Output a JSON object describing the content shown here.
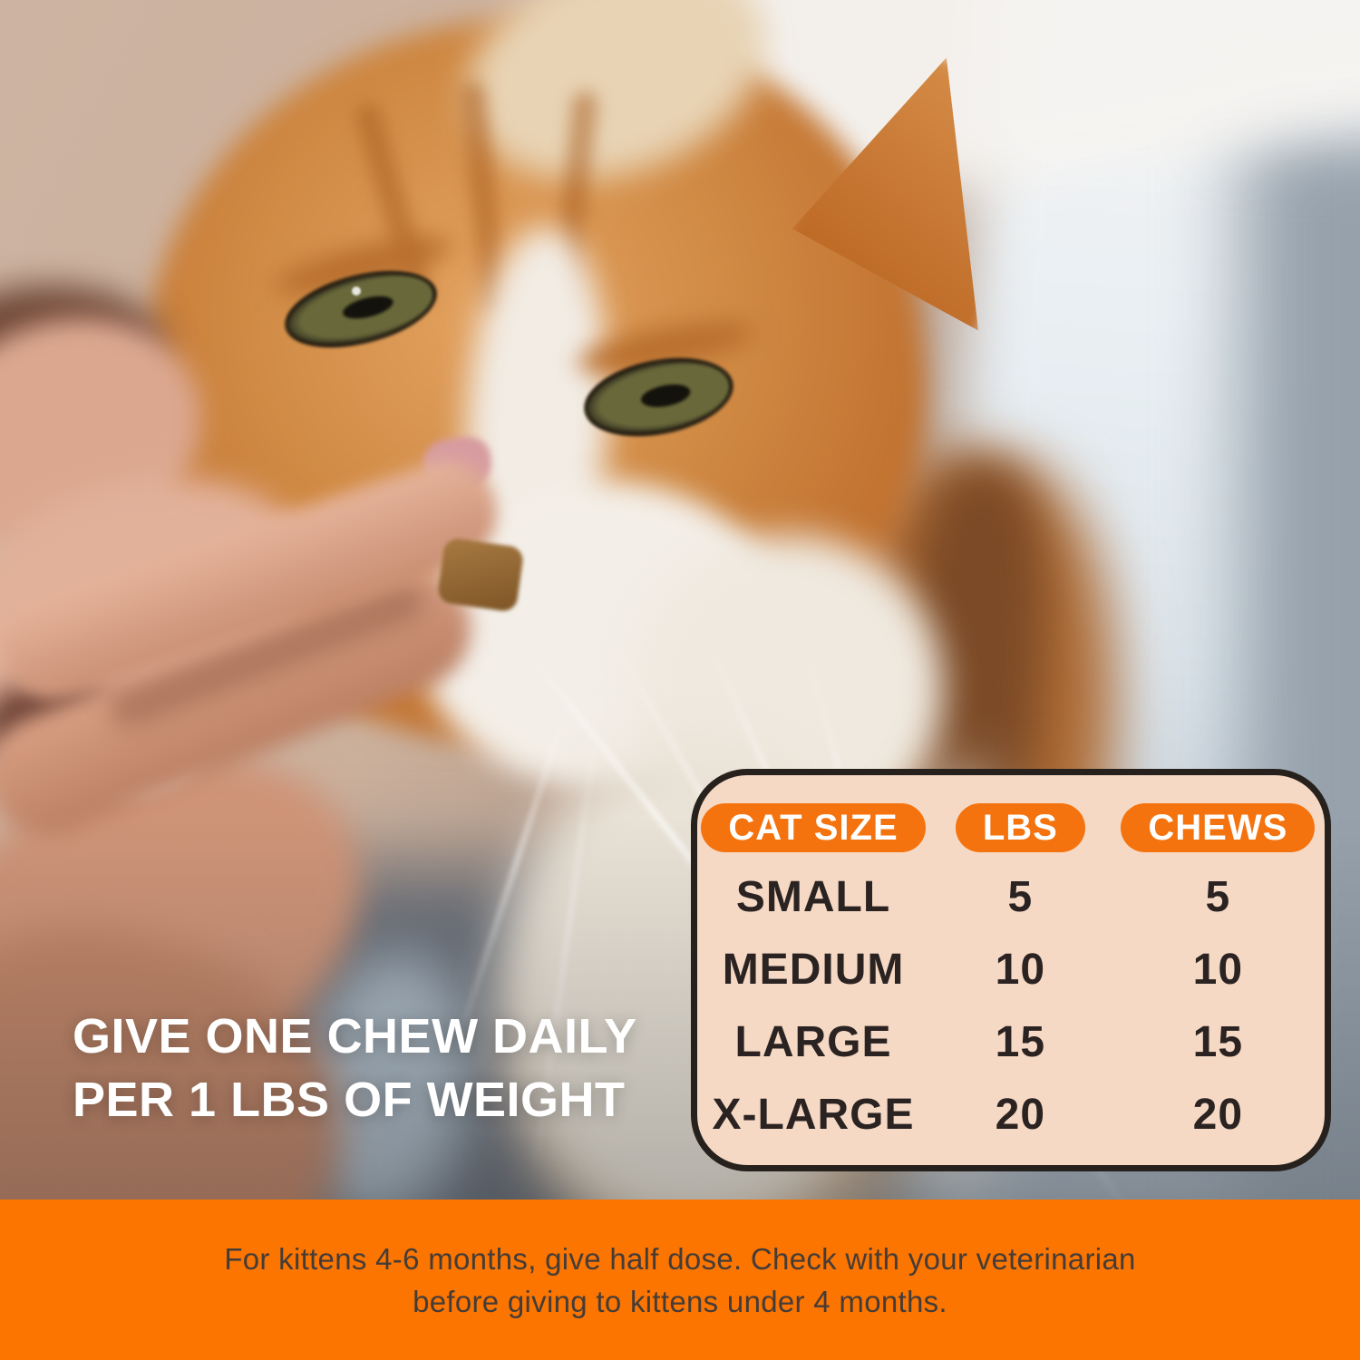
{
  "headline": {
    "line1": "GIVE ONE CHEW DAILY",
    "line2": "PER 1 LBS OF WEIGHT"
  },
  "dosing_table": {
    "headers": [
      "CAT SIZE",
      "LBS",
      "CHEWS"
    ],
    "rows": [
      [
        "SMALL",
        "5",
        "5"
      ],
      [
        "MEDIUM",
        "10",
        "10"
      ],
      [
        "LARGE",
        "15",
        "15"
      ],
      [
        "X-LARGE",
        "20",
        "20"
      ]
    ]
  },
  "footer": {
    "line1": "For kittens 4-6 months, give half dose. Check with your veterinarian",
    "line2": "before giving to kittens under 4 months."
  },
  "photo": {
    "description": "Close-up photo of an orange and white tabby cat being hand-fed a brown soft-chew treat"
  },
  "colors": {
    "footer_orange": "#FB7500",
    "pill_orange": "#F4730E",
    "card_background": "#F6D9C4",
    "card_border": "#27211E",
    "table_text": "#2A2322",
    "footer_text": "#453C38",
    "headline_text": "#FFFFFF"
  }
}
